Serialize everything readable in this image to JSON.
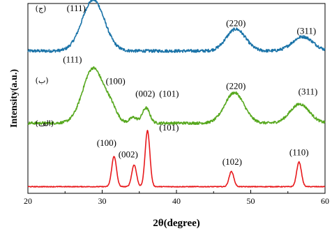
{
  "chart_data": {
    "type": "line",
    "xlabel": "2θ(degree)",
    "ylabel": "Intensity(a.u.)",
    "xlim": [
      20,
      60
    ],
    "xticks": [
      "20",
      "30",
      "40",
      "50",
      "60"
    ],
    "ylim": [
      0,
      10
    ],
    "grid": false,
    "colors": {
      "top": "#1a73a8",
      "middle": "#57a81f",
      "bottom": "#e8191c"
    },
    "series": [
      {
        "key": "top",
        "panel_label": "(ج)",
        "baseline": 7.5,
        "noise": 0.08,
        "peaks": [
          {
            "x": 28.8,
            "h": 2.7,
            "w": 1.5
          },
          {
            "x": 48.0,
            "h": 1.15,
            "w": 1.3
          },
          {
            "x": 57.0,
            "h": 0.75,
            "w": 1.4
          }
        ],
        "annotations": [
          {
            "x": 26.5,
            "y": 9.6,
            "text": "(111)"
          },
          {
            "x": 48.0,
            "y": 8.8,
            "text": "(220)"
          },
          {
            "x": 57.5,
            "y": 8.4,
            "text": "(311)"
          }
        ]
      },
      {
        "key": "middle",
        "panel_label": "(ب)",
        "baseline": 3.7,
        "noise": 0.07,
        "peaks": [
          {
            "x": 28.8,
            "h": 2.9,
            "w": 1.4
          },
          {
            "x": 31.2,
            "h": 0.6,
            "w": 0.8
          },
          {
            "x": 34.2,
            "h": 0.3,
            "w": 0.5
          },
          {
            "x": 35.9,
            "h": 0.8,
            "w": 0.5
          },
          {
            "x": 47.8,
            "h": 1.6,
            "w": 1.3
          },
          {
            "x": 56.6,
            "h": 1.0,
            "w": 1.3
          }
        ],
        "annotations": [
          {
            "x": 26.0,
            "y": 6.9,
            "text": "(111)"
          },
          {
            "x": 31.8,
            "y": 5.75,
            "text": "(100)"
          },
          {
            "x": 35.8,
            "y": 5.1,
            "text": "(002)"
          },
          {
            "x": 39.0,
            "y": 5.1,
            "text": "(101)"
          },
          {
            "x": 48.0,
            "y": 5.5,
            "text": "(220)"
          },
          {
            "x": 57.7,
            "y": 5.2,
            "text": "(311)"
          }
        ]
      },
      {
        "key": "bottom",
        "panel_label": "(الف)",
        "baseline": 0.35,
        "noise": 0.02,
        "peaks": [
          {
            "x": 31.6,
            "h": 1.6,
            "w": 0.32
          },
          {
            "x": 34.3,
            "h": 1.15,
            "w": 0.32
          },
          {
            "x": 36.1,
            "h": 2.95,
            "w": 0.32
          },
          {
            "x": 47.4,
            "h": 0.8,
            "w": 0.32
          },
          {
            "x": 56.5,
            "h": 1.3,
            "w": 0.32
          }
        ],
        "annotations": [
          {
            "x": 30.6,
            "y": 2.5,
            "text": "(100)"
          },
          {
            "x": 33.5,
            "y": 1.9,
            "text": "(002)"
          },
          {
            "x": 39.0,
            "y": 3.3,
            "text": "(101)"
          },
          {
            "x": 47.5,
            "y": 1.5,
            "text": "(102)"
          },
          {
            "x": 56.5,
            "y": 2.0,
            "text": "(110)"
          }
        ]
      }
    ]
  }
}
